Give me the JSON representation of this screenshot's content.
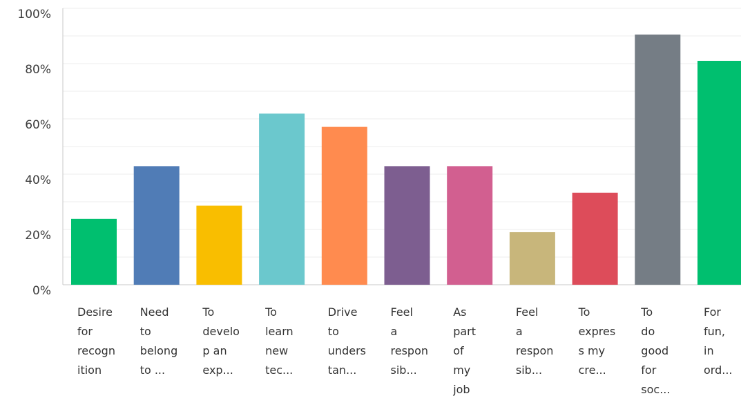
{
  "chart_data": {
    "type": "bar",
    "title": "",
    "xlabel": "",
    "ylabel": "",
    "ylim": [
      0,
      100
    ],
    "y_ticks": [
      "0%",
      "20%",
      "40%",
      "60%",
      "80%",
      "100%"
    ],
    "grid": true,
    "legend": "none",
    "categories": [
      [
        "Desire",
        "for",
        "recogn",
        "ition"
      ],
      [
        "Need",
        "to",
        "belong",
        "to ..."
      ],
      [
        "To",
        "develo",
        "p an",
        "exp..."
      ],
      [
        "To",
        "learn",
        "new",
        "tec..."
      ],
      [
        "Drive",
        "to",
        "unders",
        "tan..."
      ],
      [
        "Feel",
        "a",
        "respon",
        "sib..."
      ],
      [
        "As",
        "part",
        "of",
        "my",
        "job"
      ],
      [
        "Feel",
        "a",
        "respon",
        "sib..."
      ],
      [
        "To",
        "expres",
        "s my",
        "cre..."
      ],
      [
        "To",
        "do",
        "good",
        "for",
        "soc..."
      ],
      [
        "For",
        "fun,",
        "in",
        "ord..."
      ]
    ],
    "values": [
      23.8,
      42.9,
      28.6,
      61.9,
      57.1,
      42.9,
      42.9,
      19.0,
      33.3,
      90.5,
      81.0
    ],
    "colors": [
      "#00bf6f",
      "#507cb6",
      "#f9be00",
      "#6bc8cd",
      "#ff8b4f",
      "#7d5e90",
      "#d25f90",
      "#c8b67b",
      "#dd4c5a",
      "#757d85",
      "#00bf6f"
    ]
  }
}
